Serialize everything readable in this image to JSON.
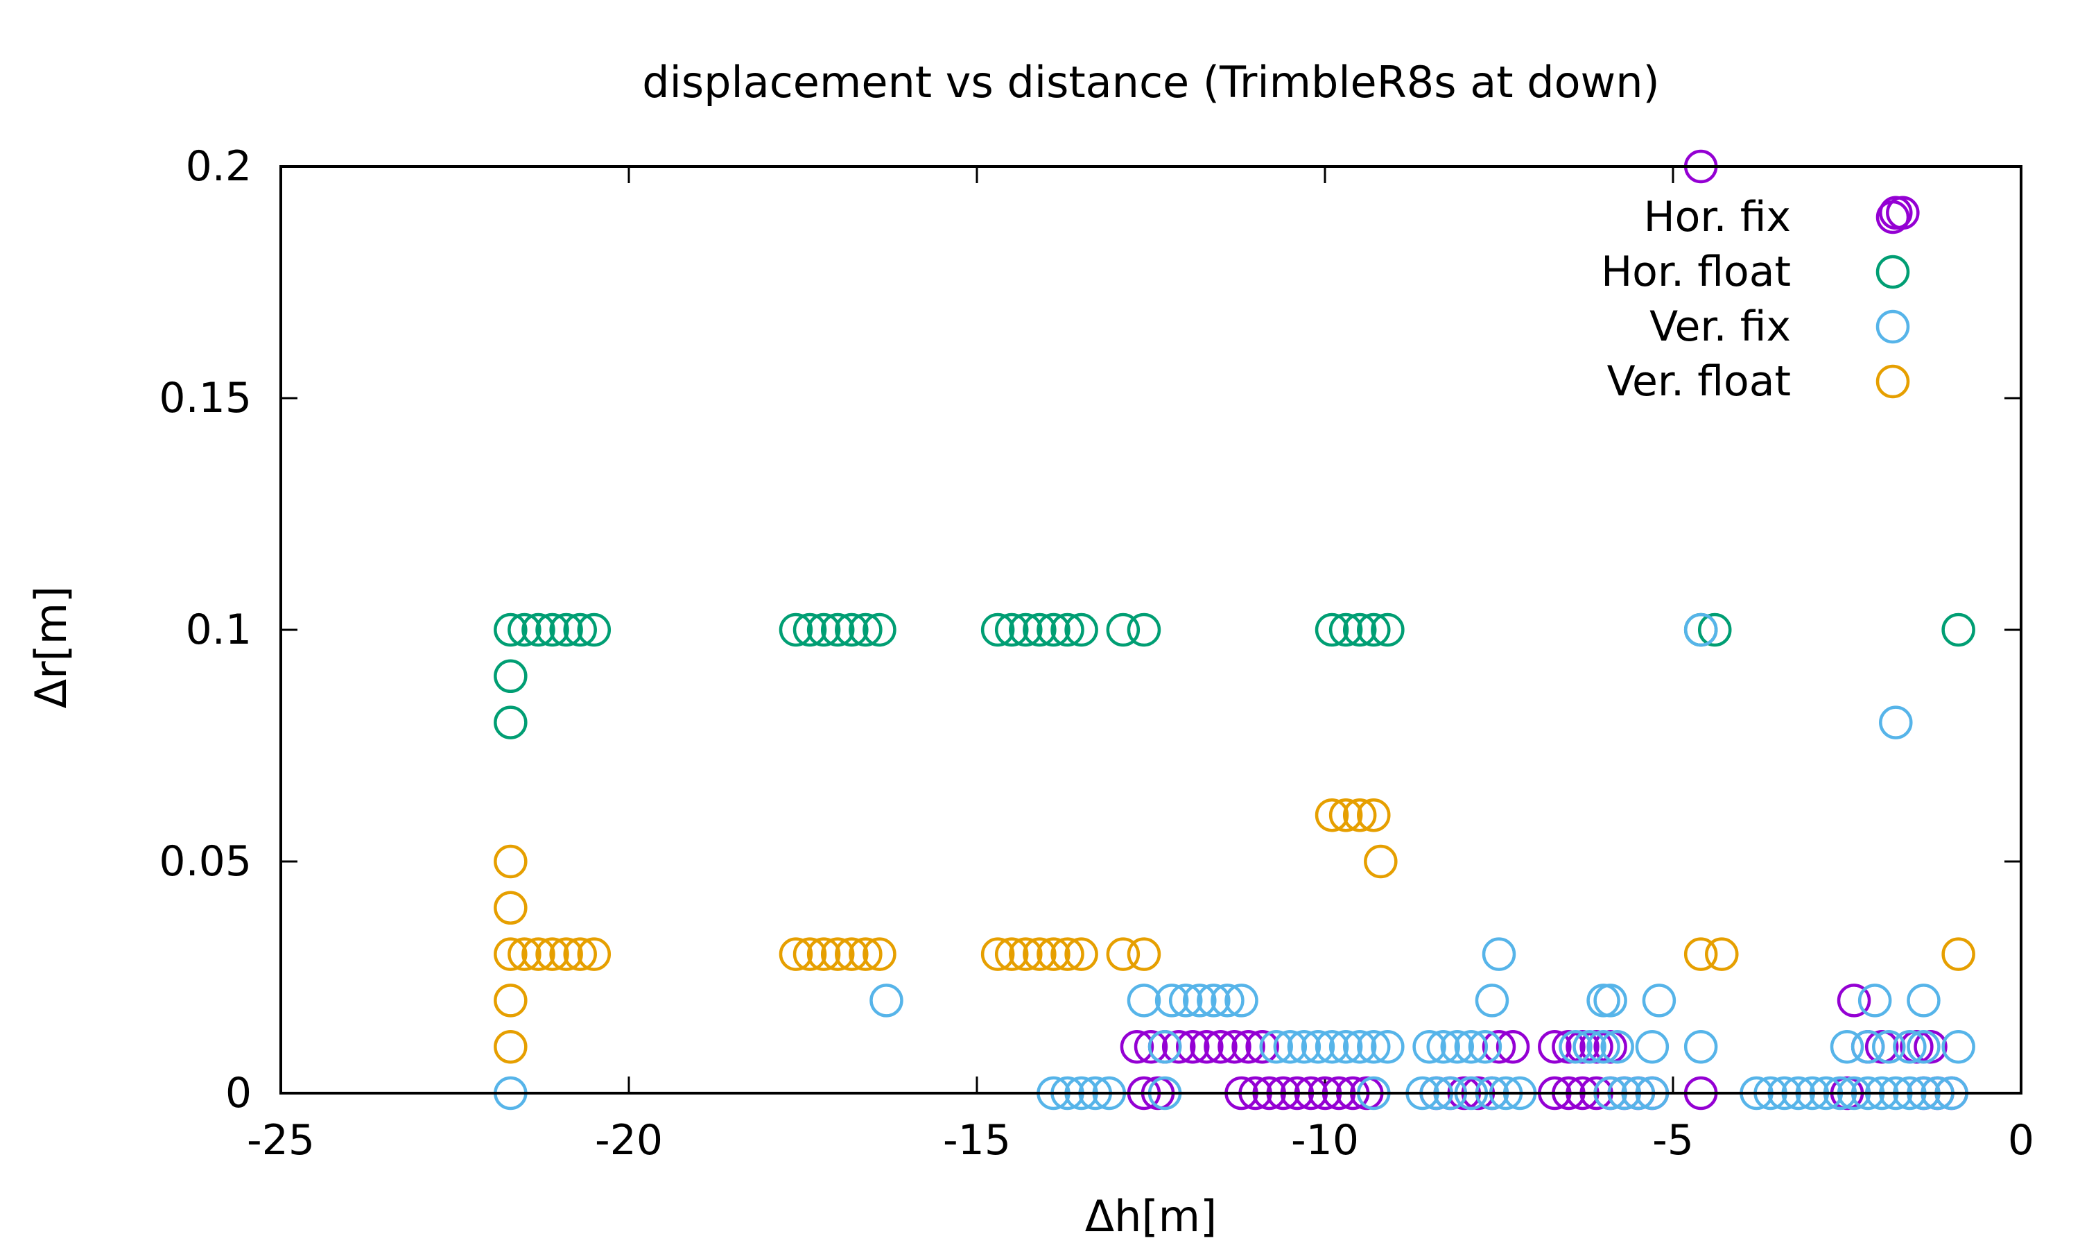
{
  "chart_data": {
    "type": "scatter",
    "title": "displacement vs distance (TrimbleR8s at down)",
    "xlabel": "Δh[m]",
    "ylabel": "Δr[m]",
    "xlim": [
      -25,
      0
    ],
    "ylim": [
      0,
      0.2
    ],
    "x_ticks": [
      "-25",
      "-20",
      "-15",
      "-10",
      "-5",
      "0"
    ],
    "y_ticks": [
      "0",
      "0.05",
      "0.1",
      "0.15",
      "0.2"
    ],
    "grid": false,
    "legend_position": "top-right",
    "series": [
      {
        "name": "Hor. fix",
        "color": "#9400D3",
        "points": [
          [
            -4.6,
            0.2
          ],
          [
            -1.8,
            0.19
          ],
          [
            -1.7,
            0.19
          ],
          [
            -12.7,
            0.01
          ],
          [
            -12.5,
            0.01
          ],
          [
            -12.3,
            0.01
          ],
          [
            -12.1,
            0.01
          ],
          [
            -11.9,
            0.01
          ],
          [
            -11.7,
            0.01
          ],
          [
            -11.5,
            0.01
          ],
          [
            -11.3,
            0.01
          ],
          [
            -11.1,
            0.01
          ],
          [
            -10.9,
            0.01
          ],
          [
            -12.6,
            0.0
          ],
          [
            -12.4,
            0.0
          ],
          [
            -11.2,
            0.0
          ],
          [
            -11.0,
            0.0
          ],
          [
            -10.8,
            0.0
          ],
          [
            -10.6,
            0.0
          ],
          [
            -10.4,
            0.0
          ],
          [
            -10.2,
            0.0
          ],
          [
            -10.0,
            0.0
          ],
          [
            -9.8,
            0.0
          ],
          [
            -9.6,
            0.0
          ],
          [
            -9.4,
            0.0
          ],
          [
            -8.4,
            0.0
          ],
          [
            -8.2,
            0.0
          ],
          [
            -8.0,
            0.0
          ],
          [
            -7.8,
            0.0
          ],
          [
            -7.6,
            0.0
          ],
          [
            -7.5,
            0.01
          ],
          [
            -7.3,
            0.01
          ],
          [
            -6.7,
            0.01
          ],
          [
            -6.5,
            0.01
          ],
          [
            -6.3,
            0.01
          ],
          [
            -6.1,
            0.01
          ],
          [
            -5.9,
            0.01
          ],
          [
            -6.7,
            0.0
          ],
          [
            -6.5,
            0.0
          ],
          [
            -6.3,
            0.0
          ],
          [
            -6.1,
            0.0
          ],
          [
            -5.9,
            0.0
          ],
          [
            -5.7,
            0.0
          ],
          [
            -5.5,
            0.0
          ],
          [
            -5.3,
            0.0
          ],
          [
            -4.6,
            0.0
          ],
          [
            -2.4,
            0.02
          ],
          [
            -2.2,
            0.01
          ],
          [
            -2.0,
            0.01
          ],
          [
            -1.5,
            0.01
          ],
          [
            -1.3,
            0.01
          ],
          [
            -2.5,
            0.0
          ],
          [
            -1.4,
            0.0
          ],
          [
            -1.2,
            0.0
          ],
          [
            -1.0,
            0.0
          ]
        ]
      },
      {
        "name": "Hor. float",
        "color": "#009E73",
        "points": [
          [
            -21.7,
            0.09
          ],
          [
            -21.7,
            0.08
          ],
          [
            -21.7,
            0.1
          ],
          [
            -21.5,
            0.1
          ],
          [
            -21.3,
            0.1
          ],
          [
            -21.1,
            0.1
          ],
          [
            -20.9,
            0.1
          ],
          [
            -20.7,
            0.1
          ],
          [
            -20.5,
            0.1
          ],
          [
            -17.6,
            0.1
          ],
          [
            -17.4,
            0.1
          ],
          [
            -17.2,
            0.1
          ],
          [
            -17.0,
            0.1
          ],
          [
            -16.8,
            0.1
          ],
          [
            -16.6,
            0.1
          ],
          [
            -16.4,
            0.1
          ],
          [
            -14.7,
            0.1
          ],
          [
            -14.5,
            0.1
          ],
          [
            -14.3,
            0.1
          ],
          [
            -14.1,
            0.1
          ],
          [
            -13.9,
            0.1
          ],
          [
            -13.7,
            0.1
          ],
          [
            -13.5,
            0.1
          ],
          [
            -12.9,
            0.1
          ],
          [
            -12.6,
            0.1
          ],
          [
            -9.9,
            0.1
          ],
          [
            -9.7,
            0.1
          ],
          [
            -9.5,
            0.1
          ],
          [
            -9.3,
            0.1
          ],
          [
            -9.1,
            0.1
          ],
          [
            -4.6,
            0.1
          ],
          [
            -4.4,
            0.1
          ],
          [
            -0.9,
            0.1
          ]
        ]
      },
      {
        "name": "Ver. fix",
        "color": "#56B4E9",
        "points": [
          [
            -21.7,
            0.0
          ],
          [
            -16.3,
            0.02
          ],
          [
            -13.9,
            0.0
          ],
          [
            -13.7,
            0.0
          ],
          [
            -13.5,
            0.0
          ],
          [
            -13.3,
            0.0
          ],
          [
            -13.1,
            0.0
          ],
          [
            -12.3,
            0.0
          ],
          [
            -12.6,
            0.02
          ],
          [
            -12.2,
            0.02
          ],
          [
            -12.0,
            0.02
          ],
          [
            -11.8,
            0.02
          ],
          [
            -11.6,
            0.02
          ],
          [
            -11.4,
            0.02
          ],
          [
            -11.2,
            0.02
          ],
          [
            -12.3,
            0.01
          ],
          [
            -10.7,
            0.01
          ],
          [
            -10.5,
            0.01
          ],
          [
            -10.3,
            0.01
          ],
          [
            -10.1,
            0.01
          ],
          [
            -9.9,
            0.01
          ],
          [
            -9.7,
            0.01
          ],
          [
            -9.5,
            0.01
          ],
          [
            -9.3,
            0.01
          ],
          [
            -9.3,
            0.0
          ],
          [
            -9.1,
            0.01
          ],
          [
            -8.5,
            0.01
          ],
          [
            -8.3,
            0.01
          ],
          [
            -8.1,
            0.01
          ],
          [
            -7.9,
            0.01
          ],
          [
            -7.7,
            0.01
          ],
          [
            -7.5,
            0.03
          ],
          [
            -7.6,
            0.02
          ],
          [
            -8.6,
            0.0
          ],
          [
            -8.4,
            0.0
          ],
          [
            -8.2,
            0.0
          ],
          [
            -7.9,
            0.0
          ],
          [
            -7.6,
            0.0
          ],
          [
            -7.4,
            0.0
          ],
          [
            -7.2,
            0.0
          ],
          [
            -6.4,
            0.01
          ],
          [
            -6.2,
            0.01
          ],
          [
            -6.0,
            0.01
          ],
          [
            -5.8,
            0.01
          ],
          [
            -6.0,
            0.02
          ],
          [
            -5.9,
            0.02
          ],
          [
            -5.2,
            0.02
          ],
          [
            -5.9,
            0.0
          ],
          [
            -5.7,
            0.0
          ],
          [
            -5.5,
            0.0
          ],
          [
            -5.3,
            0.0
          ],
          [
            -5.3,
            0.01
          ],
          [
            -4.6,
            0.01
          ],
          [
            -4.6,
            0.1
          ],
          [
            -1.8,
            0.08
          ],
          [
            -3.8,
            0.0
          ],
          [
            -3.6,
            0.0
          ],
          [
            -3.4,
            0.0
          ],
          [
            -3.2,
            0.0
          ],
          [
            -3.0,
            0.0
          ],
          [
            -2.8,
            0.0
          ],
          [
            -2.6,
            0.0
          ],
          [
            -2.4,
            0.0
          ],
          [
            -2.2,
            0.0
          ],
          [
            -2.0,
            0.0
          ],
          [
            -1.8,
            0.0
          ],
          [
            -1.6,
            0.0
          ],
          [
            -1.4,
            0.0
          ],
          [
            -1.2,
            0.0
          ],
          [
            -1.0,
            0.0
          ],
          [
            -2.5,
            0.01
          ],
          [
            -2.2,
            0.01
          ],
          [
            -1.9,
            0.01
          ],
          [
            -1.6,
            0.01
          ],
          [
            -1.4,
            0.01
          ],
          [
            -0.9,
            0.01
          ],
          [
            -2.1,
            0.02
          ],
          [
            -1.4,
            0.02
          ]
        ]
      },
      {
        "name": "Ver. float",
        "color": "#E69F00",
        "points": [
          [
            -21.7,
            0.05
          ],
          [
            -21.7,
            0.04
          ],
          [
            -21.7,
            0.02
          ],
          [
            -21.7,
            0.01
          ],
          [
            -21.7,
            0.03
          ],
          [
            -21.5,
            0.03
          ],
          [
            -21.3,
            0.03
          ],
          [
            -21.1,
            0.03
          ],
          [
            -20.9,
            0.03
          ],
          [
            -20.7,
            0.03
          ],
          [
            -20.5,
            0.03
          ],
          [
            -17.6,
            0.03
          ],
          [
            -17.4,
            0.03
          ],
          [
            -17.2,
            0.03
          ],
          [
            -17.0,
            0.03
          ],
          [
            -16.8,
            0.03
          ],
          [
            -16.6,
            0.03
          ],
          [
            -16.4,
            0.03
          ],
          [
            -14.7,
            0.03
          ],
          [
            -14.5,
            0.03
          ],
          [
            -14.3,
            0.03
          ],
          [
            -14.1,
            0.03
          ],
          [
            -13.9,
            0.03
          ],
          [
            -13.7,
            0.03
          ],
          [
            -13.5,
            0.03
          ],
          [
            -12.9,
            0.03
          ],
          [
            -12.6,
            0.03
          ],
          [
            -9.9,
            0.06
          ],
          [
            -9.7,
            0.06
          ],
          [
            -9.5,
            0.06
          ],
          [
            -9.3,
            0.06
          ],
          [
            -9.2,
            0.05
          ],
          [
            -4.6,
            0.03
          ],
          [
            -4.3,
            0.03
          ],
          [
            -0.9,
            0.03
          ]
        ]
      }
    ]
  }
}
